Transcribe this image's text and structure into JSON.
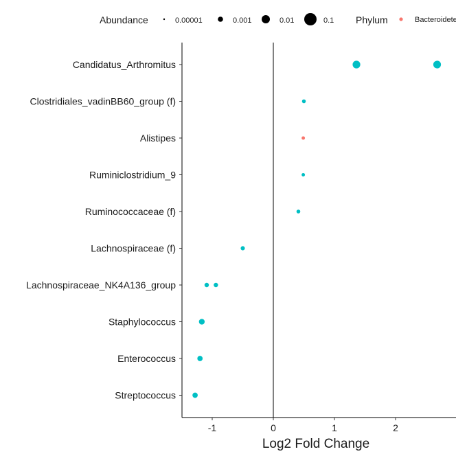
{
  "chart_data": {
    "type": "scatter",
    "xlabel": "Log2 Fold Change",
    "ylabel": "",
    "xlim": [
      -1.5,
      2.9
    ],
    "x_ticks": [
      -1,
      0,
      1,
      2
    ],
    "x_tick_labels": [
      "-1",
      "0",
      "1",
      "2"
    ],
    "categories": [
      "Candidatus_Arthromitus",
      "Clostridiales_vadinBB60_group (f)",
      "Alistipes",
      "Ruminiclostridium_9",
      "Ruminococcaceae (f)",
      "Lachnospiraceae (f)",
      "Lachnospiraceae_NK4A136_group",
      "Staphylococcus",
      "Enterococcus",
      "Streptococcus"
    ],
    "reference_line_x": 0,
    "grid": false,
    "legend_position": "top",
    "legend": {
      "abundance": {
        "title": "Abundance",
        "entries": [
          {
            "label": "0.00001",
            "value": 1e-05
          },
          {
            "label": "0.001",
            "value": 0.001
          },
          {
            "label": "0.01",
            "value": 0.01
          },
          {
            "label": "0.1",
            "value": 0.1
          }
        ]
      },
      "phylum": {
        "title": "Phylum",
        "entries": [
          {
            "label": "Bacteroidetes",
            "color": "#F8766D"
          }
        ]
      }
    },
    "colors": {
      "Bacteroidetes": "#F8766D",
      "Firmicutes": "#00BFC4"
    },
    "points": [
      {
        "taxon": "Candidatus_Arthromitus",
        "x": 1.36,
        "abundance": 0.05,
        "phylum": "Firmicutes"
      },
      {
        "taxon": "Candidatus_Arthromitus",
        "x": 2.68,
        "abundance": 0.05,
        "phylum": "Firmicutes"
      },
      {
        "taxon": "Clostridiales_vadinBB60_group (f)",
        "x": 0.5,
        "abundance": 0.0005,
        "phylum": "Firmicutes"
      },
      {
        "taxon": "Alistipes",
        "x": 0.49,
        "abundance": 0.0003,
        "phylum": "Bacteroidetes"
      },
      {
        "taxon": "Ruminiclostridium_9",
        "x": 0.49,
        "abundance": 0.0003,
        "phylum": "Firmicutes"
      },
      {
        "taxon": "Ruminococcaceae (f)",
        "x": 0.41,
        "abundance": 0.0005,
        "phylum": "Firmicutes"
      },
      {
        "taxon": "Lachnospiraceae (f)",
        "x": -0.5,
        "abundance": 0.0008,
        "phylum": "Firmicutes"
      },
      {
        "taxon": "Lachnospiraceae_NK4A136_group",
        "x": -1.09,
        "abundance": 0.001,
        "phylum": "Firmicutes"
      },
      {
        "taxon": "Lachnospiraceae_NK4A136_group",
        "x": -0.94,
        "abundance": 0.001,
        "phylum": "Firmicutes"
      },
      {
        "taxon": "Staphylococcus",
        "x": -1.17,
        "abundance": 0.005,
        "phylum": "Firmicutes"
      },
      {
        "taxon": "Enterococcus",
        "x": -1.2,
        "abundance": 0.003,
        "phylum": "Firmicutes"
      },
      {
        "taxon": "Streptococcus",
        "x": -1.28,
        "abundance": 0.003,
        "phylum": "Firmicutes"
      }
    ]
  }
}
